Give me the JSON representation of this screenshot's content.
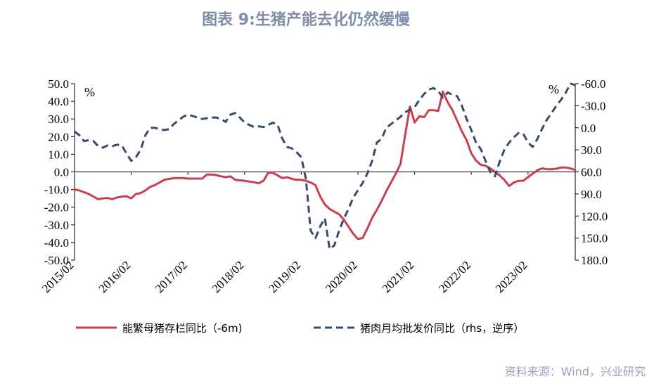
{
  "title": "图表 9:生猪产能去化仍然缓慢",
  "source": "资料来源：Wind，兴业研究",
  "chart_data": {
    "type": "line",
    "x_tick_labels": [
      "2015/02",
      "2016/02",
      "2017/02",
      "2018/02",
      "2019/02",
      "2020/02",
      "2021/02",
      "2022/02",
      "2023/02"
    ],
    "left_axis": {
      "unit": "%",
      "ylim": [
        -50,
        50
      ],
      "ticks": [
        "50.0",
        "40.0",
        "30.0",
        "20.0",
        "10.0",
        "0.0",
        "-10.0",
        "-20.0",
        "-30.0",
        "-40.0",
        "-50.0"
      ]
    },
    "right_axis": {
      "unit": "%",
      "ylim": [
        -60,
        180
      ],
      "reversed": true,
      "ticks": [
        "-60.0",
        "-30.0",
        "0.0",
        "30.0",
        "60.0",
        "90.0",
        "120.0",
        "150.0",
        "180.0"
      ]
    },
    "series": [
      {
        "name": "能繁母猪存栏同比（-6m)",
        "axis": "left",
        "color": "#c8404d",
        "style": "solid",
        "start": "2015-02",
        "values": [
          -10,
          -10.5,
          -11.5,
          -12.5,
          -14,
          -15.5,
          -15,
          -14.8,
          -15.5,
          -14.5,
          -14,
          -13.8,
          -15,
          -12.5,
          -12,
          -10.5,
          -8.5,
          -7.5,
          -6,
          -4.5,
          -4,
          -3.5,
          -3.5,
          -3.5,
          -3.8,
          -3.8,
          -3.8,
          -3.8,
          -1.5,
          -1.5,
          -1.8,
          -2.5,
          -3,
          -2.5,
          -4.5,
          -4.8,
          -5,
          -5.5,
          -5.8,
          -6.5,
          -5,
          -0.5,
          -0.5,
          -2,
          -3.5,
          -3,
          -4,
          -4.5,
          -4.5,
          -5,
          -6,
          -7.5,
          -14,
          -18.5,
          -21,
          -22.5,
          -24,
          -27,
          -31,
          -35,
          -38,
          -37.5,
          -32,
          -26,
          -21.5,
          -16.5,
          -11,
          -6,
          -1,
          4.5,
          21,
          37,
          28,
          31.5,
          31,
          35,
          35,
          34.5,
          45.5,
          39.5,
          35,
          29,
          23,
          18,
          10.5,
          6.5,
          4,
          3.5,
          2,
          0,
          -2,
          -4.5,
          -8,
          -6,
          -5,
          -5,
          -3,
          -1,
          1,
          2,
          1.5,
          1.5,
          1.8,
          2.5,
          2.5,
          2,
          1
        ]
      },
      {
        "name": "猪肉月均批发价同比（rhs，逆序）",
        "axis": "right",
        "color": "#3a4a6b",
        "style": "dashed",
        "start": "2015-02",
        "values": [
          5,
          10,
          18,
          17,
          18,
          25,
          27,
          24,
          25,
          23,
          24,
          35,
          45,
          40,
          30,
          10,
          0,
          0,
          2,
          3,
          2,
          -5,
          -10,
          -15,
          -18,
          -16,
          -14,
          -12,
          -13,
          -14,
          -14,
          -12,
          -8,
          -18,
          -20,
          -14,
          -7,
          -4,
          -1,
          -2,
          -1,
          -4,
          -7,
          -4,
          15,
          26,
          28,
          33,
          40,
          70,
          140,
          150,
          134,
          123,
          165,
          160,
          140,
          124,
          110,
          95,
          85,
          75,
          62,
          45,
          20,
          15,
          0,
          -5,
          -10,
          -15,
          -21,
          -25,
          -28,
          -38,
          -46,
          -52,
          -54,
          -50,
          -41,
          -48,
          -45,
          -43,
          -30,
          -12,
          3,
          20,
          29,
          45,
          60,
          66,
          46,
          30,
          20,
          13,
          7,
          8,
          20,
          26,
          15,
          1,
          -11,
          -20,
          -30,
          -38,
          -48,
          -60,
          -58
        ]
      }
    ],
    "grid": false,
    "legend_position": "bottom"
  }
}
